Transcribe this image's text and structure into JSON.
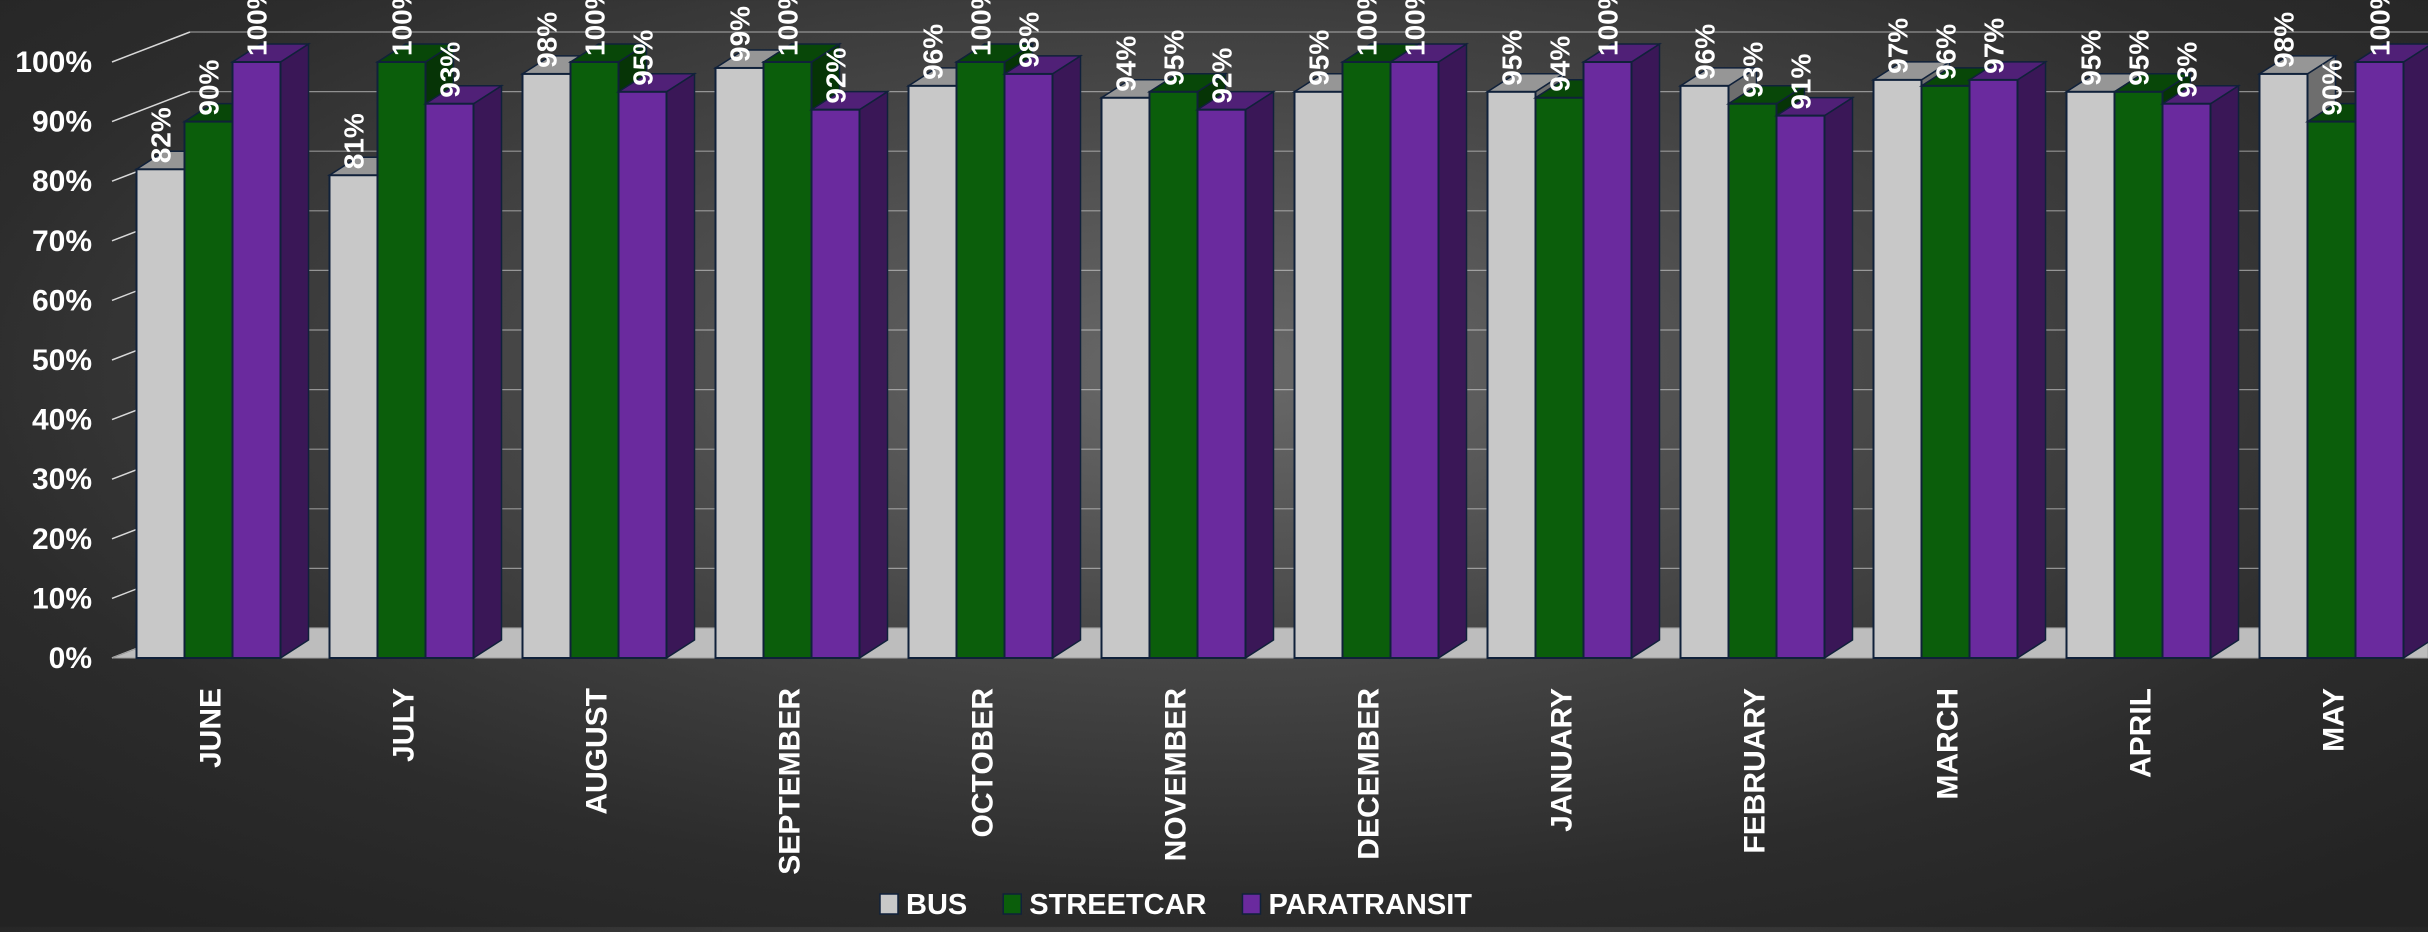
{
  "chart_data": {
    "type": "bar",
    "title": "",
    "xlabel": "",
    "ylabel": "",
    "ylim": [
      0,
      100
    ],
    "y_ticks": [
      0,
      10,
      20,
      30,
      40,
      50,
      60,
      70,
      80,
      90,
      100
    ],
    "y_tick_format": "%",
    "grid": true,
    "legend_position": "bottom",
    "categories": [
      "JUNE",
      "JULY",
      "AUGUST",
      "SEPTEMBER",
      "OCTOBER",
      "NOVEMBER",
      "DECEMBER",
      "JANUARY",
      "FEBRUARY",
      "MARCH",
      "APRIL",
      "MAY"
    ],
    "series": [
      {
        "name": "BUS",
        "color": "#c8c8c8",
        "values": [
          82,
          81,
          98,
          99,
          96,
          94,
          95,
          95,
          96,
          97,
          95,
          98
        ]
      },
      {
        "name": "STREETCAR",
        "color": "#0b5e0b",
        "values": [
          90,
          100,
          100,
          100,
          100,
          95,
          100,
          94,
          93,
          96,
          95,
          90
        ]
      },
      {
        "name": "PARATRANSIT",
        "color": "#6a2a9e",
        "values": [
          100,
          93,
          95,
          92,
          98,
          92,
          100,
          100,
          91,
          97,
          93,
          100
        ]
      }
    ]
  }
}
